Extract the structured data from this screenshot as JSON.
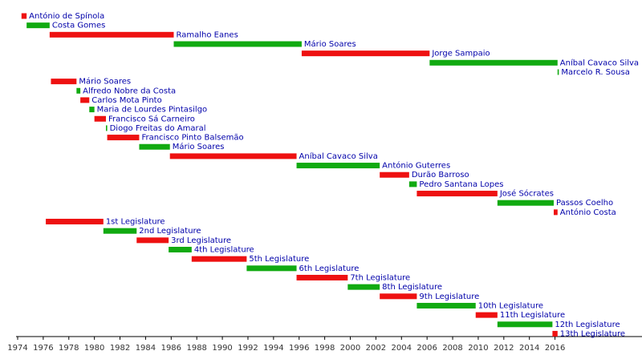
{
  "chart_data": {
    "type": "timeline",
    "xlim": [
      1974,
      2022.8
    ],
    "xticks": [
      1974,
      1976,
      1978,
      1980,
      1982,
      1984,
      1986,
      1988,
      1990,
      1992,
      1994,
      1996,
      1998,
      2000,
      2002,
      2004,
      2006,
      2008,
      2010,
      2012,
      2014,
      2016
    ],
    "bars": [
      {
        "label": "António de Spínola",
        "start": 1974.3,
        "end": 1974.7,
        "color": "#ee1111"
      },
      {
        "label": "Costa Gomes",
        "start": 1974.7,
        "end": 1976.5,
        "color": "#11aa11"
      },
      {
        "label": "Ramalho Eanes",
        "start": 1976.5,
        "end": 1986.2,
        "color": "#ee1111"
      },
      {
        "label": "Mário Soares",
        "start": 1986.2,
        "end": 1996.2,
        "color": "#11aa11"
      },
      {
        "label": "Jorge Sampaio",
        "start": 1996.2,
        "end": 2006.2,
        "color": "#ee1111"
      },
      {
        "label": "Aníbal Cavaco Silva",
        "start": 2006.2,
        "end": 2016.2,
        "color": "#11aa11"
      },
      {
        "label": "Marcelo R. Sousa",
        "start": 2016.2,
        "end": 2016.3,
        "color": "#11aa11"
      },
      {
        "label": "Mário Soares",
        "start": 1976.6,
        "end": 1978.6,
        "color": "#ee1111"
      },
      {
        "label": "Alfredo Nobre da Costa",
        "start": 1978.6,
        "end": 1978.9,
        "color": "#11aa11"
      },
      {
        "label": "Carlos Mota Pinto",
        "start": 1978.9,
        "end": 1979.6,
        "color": "#ee1111"
      },
      {
        "label": "Maria de Lourdes Pintasilgo",
        "start": 1979.6,
        "end": 1980.0,
        "color": "#11aa11"
      },
      {
        "label": "Francisco Sá Carneiro",
        "start": 1980.0,
        "end": 1980.9,
        "color": "#ee1111"
      },
      {
        "label": "Diogo Freitas do Amaral",
        "start": 1980.9,
        "end": 1981.0,
        "color": "#11aa11"
      },
      {
        "label": "Francisco Pinto Balsemão",
        "start": 1981.0,
        "end": 1983.5,
        "color": "#ee1111"
      },
      {
        "label": "Mário Soares",
        "start": 1983.5,
        "end": 1985.9,
        "color": "#11aa11"
      },
      {
        "label": "Aníbal Cavaco Silva",
        "start": 1985.9,
        "end": 1995.8,
        "color": "#ee1111"
      },
      {
        "label": "António Guterres",
        "start": 1995.8,
        "end": 2002.3,
        "color": "#11aa11"
      },
      {
        "label": "Durão Barroso",
        "start": 2002.3,
        "end": 2004.6,
        "color": "#ee1111"
      },
      {
        "label": "Pedro Santana Lopes",
        "start": 2004.6,
        "end": 2005.2,
        "color": "#11aa11"
      },
      {
        "label": "José Sócrates",
        "start": 2005.2,
        "end": 2011.5,
        "color": "#ee1111"
      },
      {
        "label": "Passos Coelho",
        "start": 2011.5,
        "end": 2015.9,
        "color": "#11aa11"
      },
      {
        "label": "António Costa",
        "start": 2015.9,
        "end": 2016.2,
        "color": "#ee1111"
      },
      {
        "label": "1st Legislature",
        "start": 1976.2,
        "end": 1980.7,
        "color": "#ee1111"
      },
      {
        "label": "2nd Legislature",
        "start": 1980.7,
        "end": 1983.3,
        "color": "#11aa11"
      },
      {
        "label": "3rd Legislature",
        "start": 1983.3,
        "end": 1985.8,
        "color": "#ee1111"
      },
      {
        "label": "4th Legislature",
        "start": 1985.8,
        "end": 1987.6,
        "color": "#11aa11"
      },
      {
        "label": "5th Legislature",
        "start": 1987.6,
        "end": 1991.9,
        "color": "#ee1111"
      },
      {
        "label": "6th Legislature",
        "start": 1991.9,
        "end": 1995.8,
        "color": "#11aa11"
      },
      {
        "label": "7th Legislature",
        "start": 1995.8,
        "end": 1999.8,
        "color": "#ee1111"
      },
      {
        "label": "8th Legislature",
        "start": 1999.8,
        "end": 2002.3,
        "color": "#11aa11"
      },
      {
        "label": "9th Legislature",
        "start": 2002.3,
        "end": 2005.2,
        "color": "#ee1111"
      },
      {
        "label": "10th Legislature",
        "start": 2005.2,
        "end": 2009.8,
        "color": "#11aa11"
      },
      {
        "label": "11th Legislature",
        "start": 2009.8,
        "end": 2011.5,
        "color": "#ee1111"
      },
      {
        "label": "12th Legislature",
        "start": 2011.5,
        "end": 2015.8,
        "color": "#11aa11"
      },
      {
        "label": "13th Legislature",
        "start": 2015.8,
        "end": 2016.2,
        "color": "#ee1111"
      }
    ]
  }
}
